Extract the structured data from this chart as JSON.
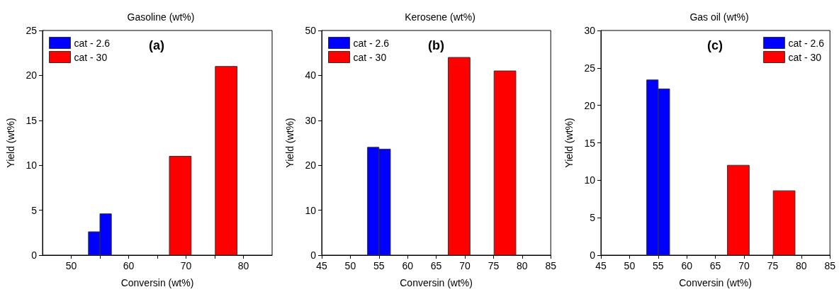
{
  "chart_data": [
    {
      "type": "bar",
      "title": "Gasoline (wt%)",
      "xlabel": "Conversin (wt%)",
      "ylabel": "Yield (wt%)",
      "annotations": [
        "(a)"
      ],
      "legend": "top left",
      "grid": false,
      "xlim": [
        45,
        85
      ],
      "xticks": [
        50,
        {
          "value": 55,
          "label": null
        },
        60,
        {
          "value": 65,
          "label": null
        },
        70,
        {
          "value": 75,
          "label": null
        },
        80
      ],
      "ylim": [
        0,
        25
      ],
      "yticks": [
        0,
        5,
        10,
        15,
        20,
        25
      ],
      "series": [
        {
          "name": "cat - 2.6",
          "color": "#0000ff",
          "x": [
            54,
            56
          ],
          "values": [
            2.6,
            4.6
          ]
        },
        {
          "name": "cat - 30",
          "color": "#ff0000",
          "x": [
            69,
            77
          ],
          "values": [
            11,
            21
          ]
        }
      ]
    },
    {
      "type": "bar",
      "title": "Kerosene (wt%)",
      "xlabel": "Conversin (wt%)",
      "ylabel": "Yield (wt%)",
      "annotations": [
        "(b)"
      ],
      "legend": "top left",
      "grid": false,
      "xlim": [
        45,
        85
      ],
      "xticks": [
        45,
        50,
        55,
        60,
        65,
        70,
        75,
        80,
        85
      ],
      "ylim": [
        0,
        50
      ],
      "yticks": [
        0,
        10,
        20,
        30,
        40,
        50
      ],
      "series": [
        {
          "name": "cat - 2.6",
          "color": "#0000ff",
          "x": [
            54,
            56
          ],
          "values": [
            24,
            23.6
          ]
        },
        {
          "name": "cat - 30",
          "color": "#ff0000",
          "x": [
            69,
            77
          ],
          "values": [
            44,
            41
          ]
        }
      ]
    },
    {
      "type": "bar",
      "title": "Gas oil (wt%)",
      "xlabel": "Conversin (wt%)",
      "ylabel": "Yield (wt%)",
      "annotations": [
        "(c)"
      ],
      "legend": "top right",
      "grid": false,
      "xlim": [
        45,
        85
      ],
      "xticks": [
        45,
        50,
        55,
        60,
        65,
        70,
        75,
        80,
        85
      ],
      "ylim": [
        0,
        30
      ],
      "yticks": [
        0,
        5,
        10,
        15,
        20,
        25,
        30
      ],
      "series": [
        {
          "name": "cat - 2.6",
          "color": "#0000ff",
          "x": [
            54,
            56
          ],
          "values": [
            23.4,
            22.2
          ]
        },
        {
          "name": "cat - 30",
          "color": "#ff0000",
          "x": [
            69,
            77
          ],
          "values": [
            12,
            8.6
          ]
        }
      ]
    }
  ]
}
